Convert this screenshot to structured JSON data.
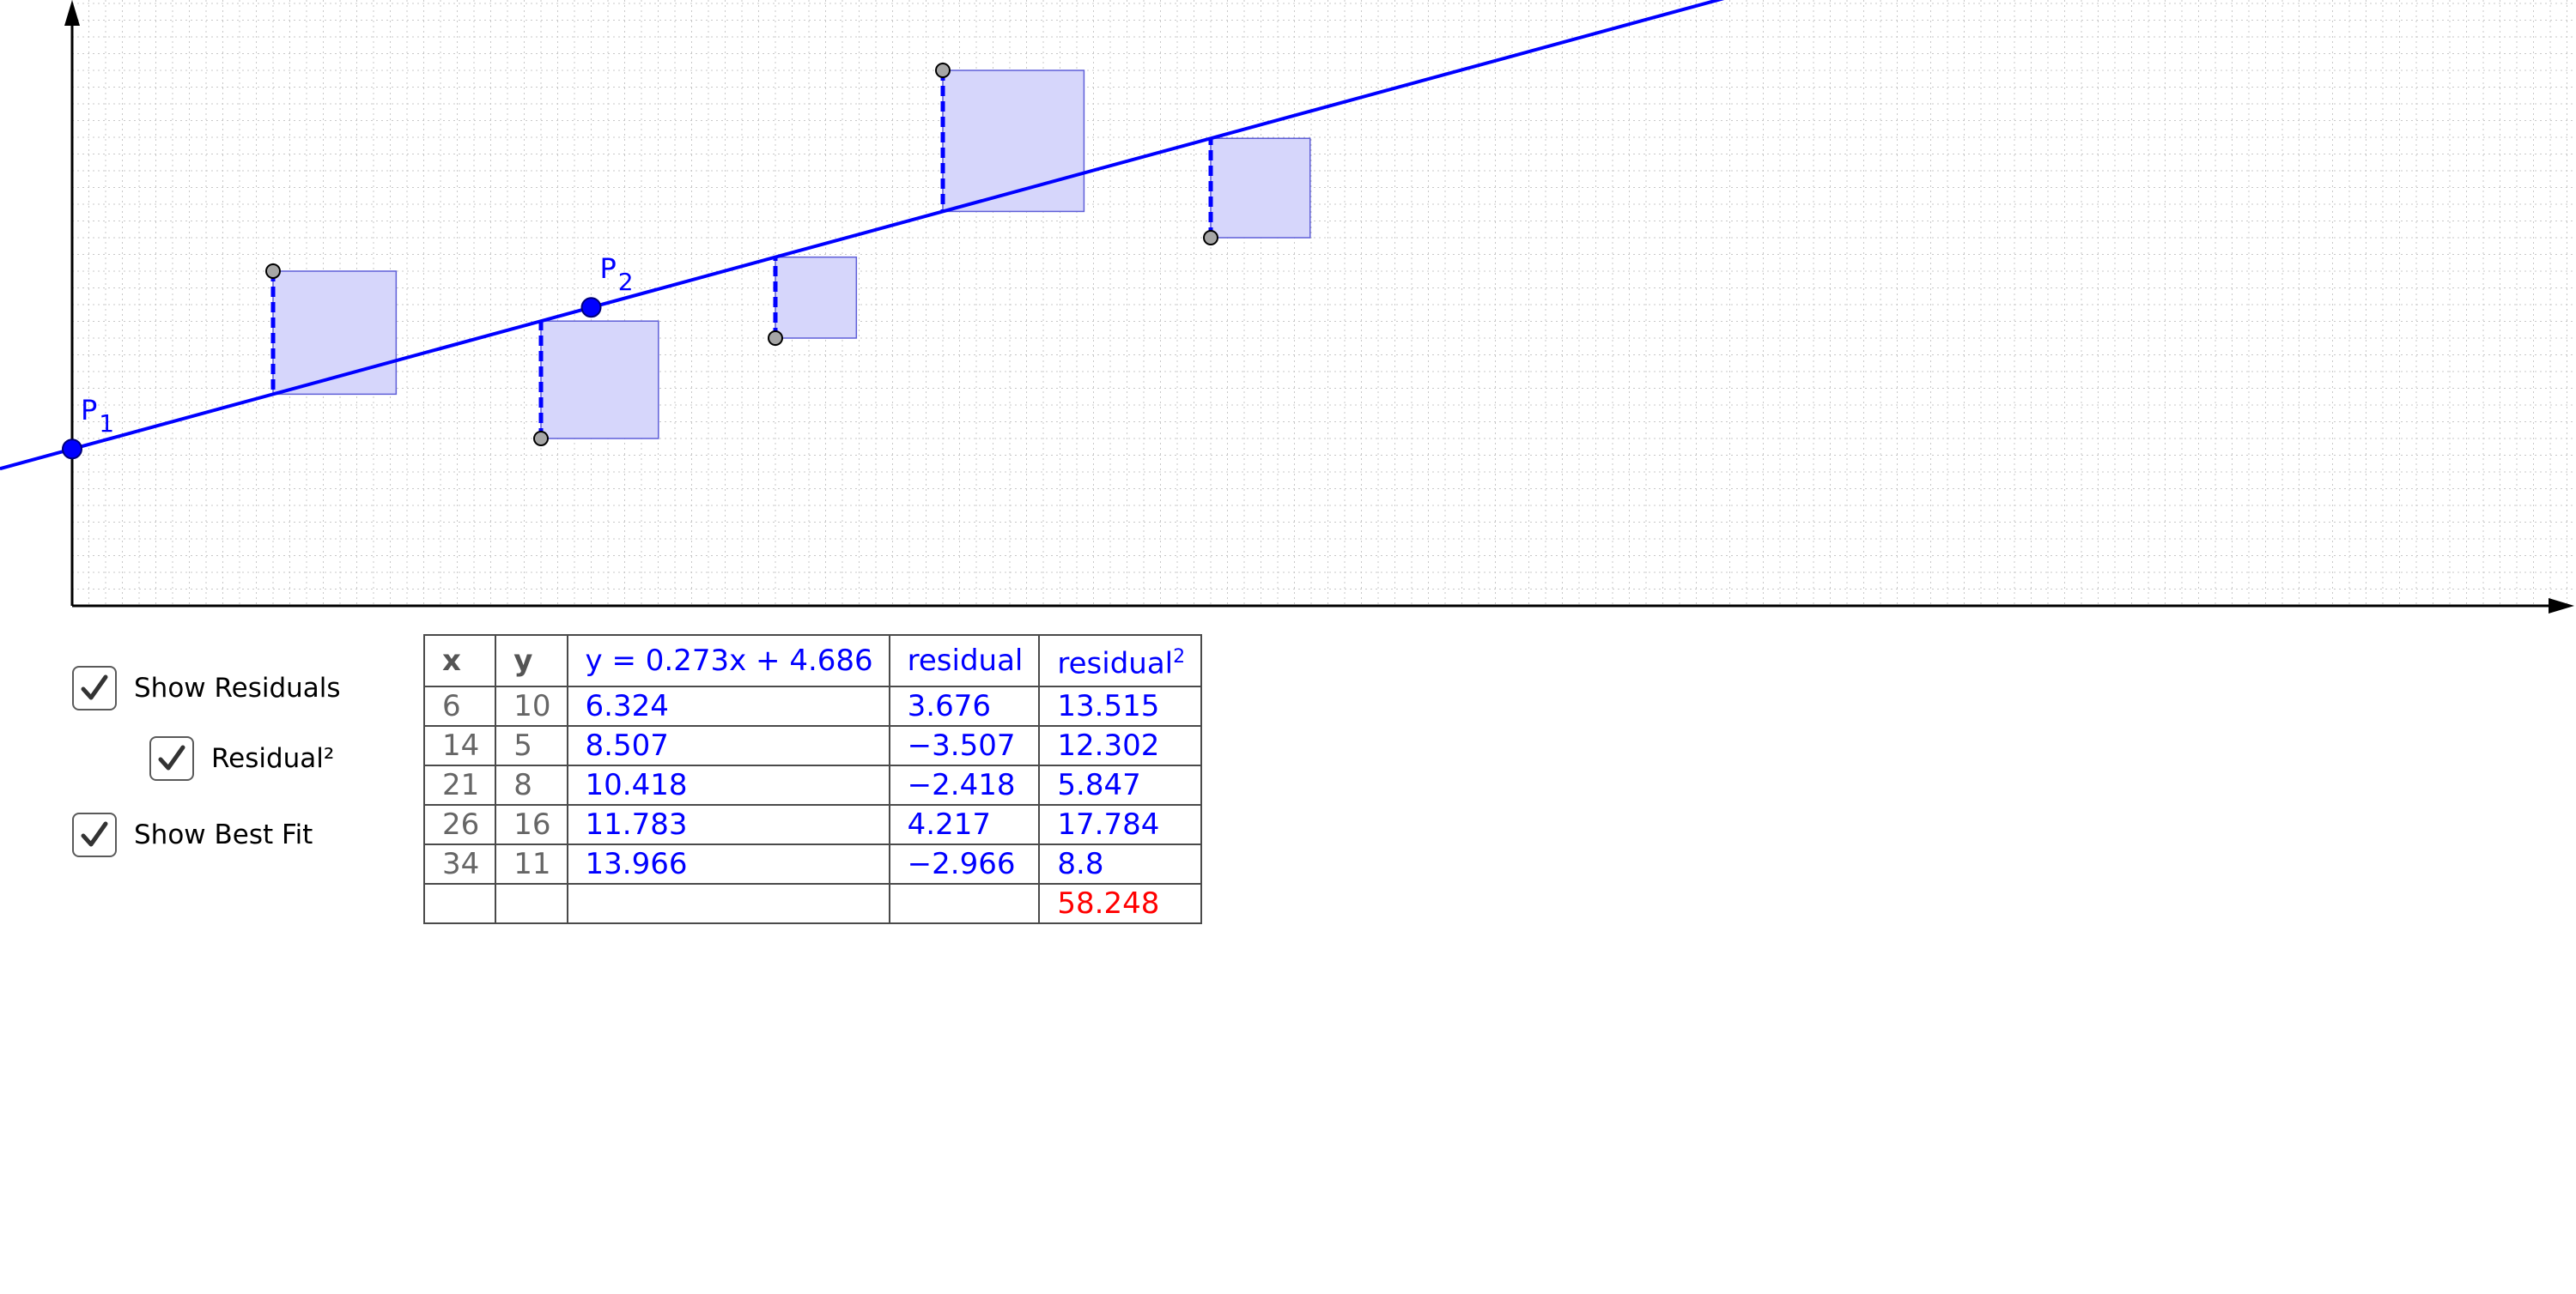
{
  "graph": {
    "origin_x": 0,
    "origin_y": 0,
    "points": [
      {
        "x": 6,
        "y": 10
      },
      {
        "x": 14,
        "y": 5
      },
      {
        "x": 21,
        "y": 8
      },
      {
        "x": 26,
        "y": 16
      },
      {
        "x": 34,
        "y": 11
      }
    ],
    "best_fit": {
      "slope": 0.273,
      "intercept": 4.686
    },
    "user_line": {
      "P1": {
        "label": "P",
        "subscript": "1",
        "x": 0,
        "y": 4.686
      },
      "P2": {
        "label": "P",
        "subscript": "2",
        "x": 15.5,
        "y": 8.9175
      }
    },
    "colors": {
      "user_line": "#0000ff",
      "best_fit": "#000000",
      "square_fill": "#d6d6fb",
      "square_stroke": "#5f5fd8",
      "grid": "#c8c8c8",
      "data_point": "#a6a6a6"
    }
  },
  "controls": {
    "show_residuals": {
      "label": "Show Residuals",
      "checked": true
    },
    "residual_sq": {
      "label": "Residual²",
      "checked": true
    },
    "show_best_fit": {
      "label": "Show Best Fit",
      "checked": true
    }
  },
  "table": {
    "headers": [
      "x",
      "y",
      "y = 0.273x + 4.686",
      "residual",
      "residual",
      "2"
    ],
    "rows": [
      [
        "6",
        "10",
        "6.324",
        "3.676",
        "13.515"
      ],
      [
        "14",
        "5",
        "8.507",
        "−3.507",
        "12.302"
      ],
      [
        "21",
        "8",
        "10.418",
        "−2.418",
        "5.847"
      ],
      [
        "26",
        "16",
        "11.783",
        "4.217",
        "17.784"
      ],
      [
        "34",
        "11",
        "13.966",
        "−2.966",
        "8.8"
      ]
    ],
    "total": "58.248"
  }
}
